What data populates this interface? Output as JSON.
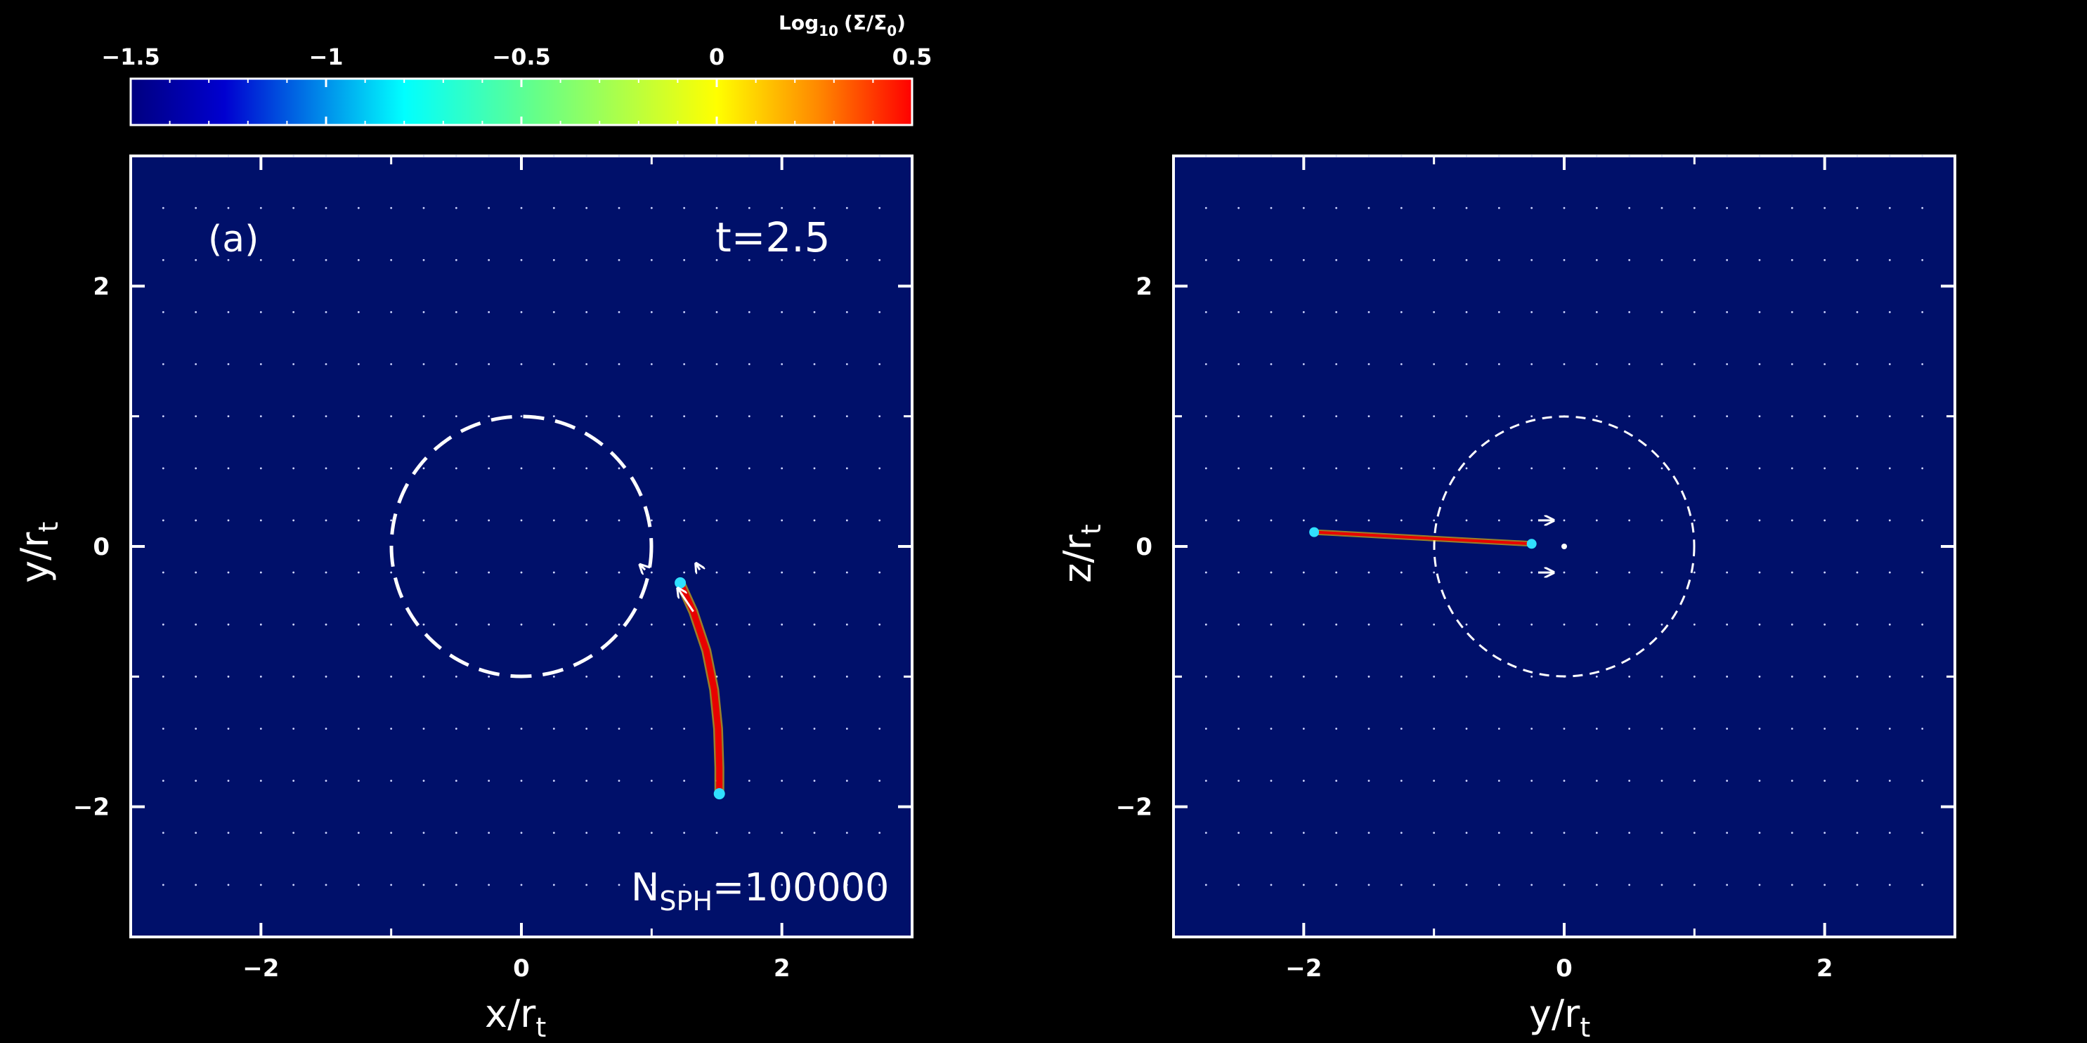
{
  "colorbar": {
    "title_main": "Log",
    "title_sub": "10",
    "title_rest": "(Σ/Σ",
    "title_sub2": "0",
    "title_close": ")",
    "range": [
      -1.5,
      0.5
    ],
    "ticks": [
      "−1.5",
      "−1",
      "−0.5",
      "0",
      "0.5"
    ],
    "tick_values": [
      -1.5,
      -1,
      -0.5,
      0,
      0.5
    ],
    "colormap": "jet",
    "colors": [
      "#00007f",
      "#0000ff",
      "#00ffff",
      "#ffff00",
      "#ff0000"
    ]
  },
  "panel_a": {
    "label": "(a)",
    "time_label": "t=2.5",
    "n_main": "N",
    "n_sub": "SPH",
    "n_value": "=100000",
    "xlabel_main": "x/r",
    "xlabel_sub": "t",
    "ylabel_main": "y/r",
    "ylabel_sub": "t",
    "xticks": [
      "−2",
      "0",
      "2"
    ],
    "yticks": [
      "2",
      "0",
      "−2"
    ]
  },
  "panel_b": {
    "xlabel_main": "y/r",
    "xlabel_sub": "t",
    "ylabel_main": "z/r",
    "ylabel_sub": "t",
    "xticks": [
      "−2",
      "0",
      "2"
    ],
    "yticks": [
      "2",
      "0",
      "−2"
    ]
  },
  "chart_data": [
    {
      "type": "heatmap",
      "panel": "a",
      "xlabel": "x/r_t",
      "ylabel": "y/r_t",
      "xlim": [
        -3,
        3
      ],
      "ylim": [
        -3,
        3
      ],
      "background_color": "#00106a",
      "grid": "dotted",
      "tidal_radius_circle": {
        "center": [
          0,
          0
        ],
        "radius": 1,
        "style": "dashed"
      },
      "stream": {
        "x": [
          1.22,
          1.32,
          1.42,
          1.48,
          1.51,
          1.52,
          1.52
        ],
        "y": [
          -0.28,
          -0.5,
          -0.8,
          -1.1,
          -1.4,
          -1.7,
          -1.9
        ]
      },
      "velocity_arrows": [
        {
          "x": 1.32,
          "y": -0.5,
          "dx": -0.12,
          "dy": 0.18
        },
        {
          "x": 1.37,
          "y": -0.18,
          "dx": -0.03,
          "dy": 0.05
        },
        {
          "x": 0.95,
          "y": -0.18,
          "dx": -0.04,
          "dy": 0.04
        }
      ]
    },
    {
      "type": "heatmap",
      "panel": "b",
      "xlabel": "y/r_t",
      "ylabel": "z/r_t",
      "xlim": [
        -3,
        3
      ],
      "ylim": [
        -3,
        3
      ],
      "background_color": "#00106a",
      "grid": "dotted",
      "tidal_radius_circle": {
        "center": [
          0,
          0
        ],
        "radius": 1,
        "style": "dashed"
      },
      "stream": {
        "x": [
          -1.92,
          -0.25
        ],
        "y": [
          0.11,
          0.02
        ]
      },
      "velocity_arrows": [
        {
          "x": -0.2,
          "y": 0.2,
          "dx": 0.12,
          "dy": 0
        },
        {
          "x": -0.2,
          "y": -0.2,
          "dx": 0.12,
          "dy": 0
        }
      ]
    }
  ]
}
